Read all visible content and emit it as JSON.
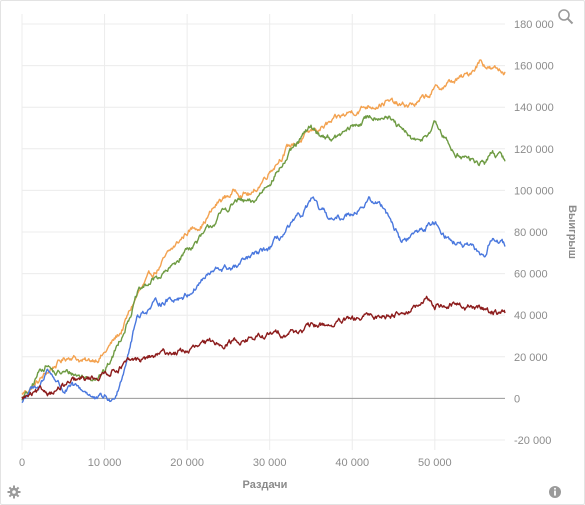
{
  "toolbar": {
    "zoom_icon": "magnifier-icon",
    "settings_icon": "gear-icon",
    "info_icon": "info-icon"
  },
  "chart_data": {
    "type": "line",
    "xlabel": "Раздачи",
    "ylabel": "Выигрыш",
    "xlim": [
      0,
      58500
    ],
    "ylim": [
      -20000,
      180000
    ],
    "x_ticks": [
      0,
      10000,
      20000,
      30000,
      40000,
      50000
    ],
    "x_tick_labels": [
      "0",
      "10 000",
      "20 000",
      "30 000",
      "40 000",
      "50 000"
    ],
    "y_ticks": [
      -20000,
      0,
      20000,
      40000,
      60000,
      80000,
      100000,
      120000,
      140000,
      160000,
      180000
    ],
    "y_tick_labels": [
      "-20 000",
      "0",
      "20 000",
      "40 000",
      "60 000",
      "80 000",
      "100 000",
      "120 000",
      "140 000",
      "160 000",
      "180 000"
    ],
    "grid": true,
    "zero_line": true,
    "y_axis_side": "right",
    "series": [
      {
        "color": "#f3a250",
        "x": [
          0,
          2000,
          4000,
          6000,
          8000,
          10000,
          12000,
          14000,
          16000,
          18000,
          20000,
          22000,
          24000,
          26000,
          28000,
          30000,
          32000,
          34000,
          36000,
          38000,
          40000,
          42000,
          44000,
          46000,
          48000,
          50000,
          52000,
          54000,
          55500,
          57000,
          58500
        ],
        "y": [
          2000,
          8000,
          16000,
          21000,
          17000,
          22000,
          32000,
          50000,
          60000,
          70000,
          80000,
          85000,
          95000,
          100000,
          98000,
          110000,
          120000,
          125000,
          130000,
          133000,
          138000,
          141000,
          143000,
          140000,
          142000,
          148000,
          152000,
          155000,
          163000,
          158000,
          157000
        ]
      },
      {
        "color": "#6e9b43",
        "x": [
          0,
          1000,
          2000,
          3000,
          4000,
          6000,
          8000,
          10000,
          11000,
          12000,
          14000,
          16000,
          18000,
          20000,
          22000,
          24000,
          26000,
          28000,
          30000,
          32000,
          34000,
          35000,
          36000,
          38000,
          40000,
          42000,
          44000,
          46000,
          48000,
          50000,
          52000,
          54000,
          56000,
          57000,
          58500
        ],
        "y": [
          0,
          3000,
          12000,
          17000,
          12000,
          12000,
          10000,
          13000,
          20000,
          30000,
          50000,
          57000,
          62000,
          72000,
          78000,
          88000,
          95000,
          93000,
          105000,
          115000,
          125000,
          130000,
          127000,
          125000,
          130000,
          135000,
          137000,
          128000,
          122000,
          132000,
          120000,
          115000,
          112000,
          119000,
          114000
        ]
      },
      {
        "color": "#4a78de",
        "x": [
          0,
          1000,
          2000,
          3000,
          4000,
          5000,
          6000,
          8000,
          9000,
          10000,
          11000,
          12000,
          13000,
          14000,
          16000,
          18000,
          20000,
          22000,
          24000,
          26000,
          28000,
          30000,
          32000,
          34000,
          35000,
          36000,
          38000,
          40000,
          42000,
          44000,
          46000,
          48000,
          50000,
          52000,
          54000,
          56000,
          57000,
          58500
        ],
        "y": [
          -2000,
          5000,
          3000,
          14000,
          10000,
          4000,
          5000,
          3000,
          -1000,
          0,
          -2000,
          10000,
          25000,
          40000,
          45000,
          48000,
          50000,
          58000,
          62000,
          63000,
          68000,
          72000,
          80000,
          88000,
          95000,
          90000,
          85000,
          90000,
          95000,
          92000,
          75000,
          80000,
          85000,
          76000,
          72000,
          68000,
          78000,
          73000
        ]
      },
      {
        "color": "#8c1c1c",
        "x": [
          0,
          2000,
          4000,
          6000,
          8000,
          10000,
          12000,
          14000,
          16000,
          18000,
          20000,
          22000,
          24000,
          26000,
          28000,
          30000,
          32000,
          34000,
          36000,
          38000,
          40000,
          42000,
          44000,
          46000,
          48000,
          49000,
          50000,
          52000,
          54000,
          56000,
          58500
        ],
        "y": [
          0,
          2000,
          4000,
          7000,
          9000,
          12000,
          16000,
          18000,
          20000,
          22000,
          23000,
          25000,
          27000,
          28000,
          29000,
          30000,
          32000,
          33000,
          35000,
          36000,
          37000,
          39000,
          40000,
          42000,
          44000,
          47000,
          45000,
          45000,
          44000,
          43000,
          41000
        ]
      }
    ]
  }
}
